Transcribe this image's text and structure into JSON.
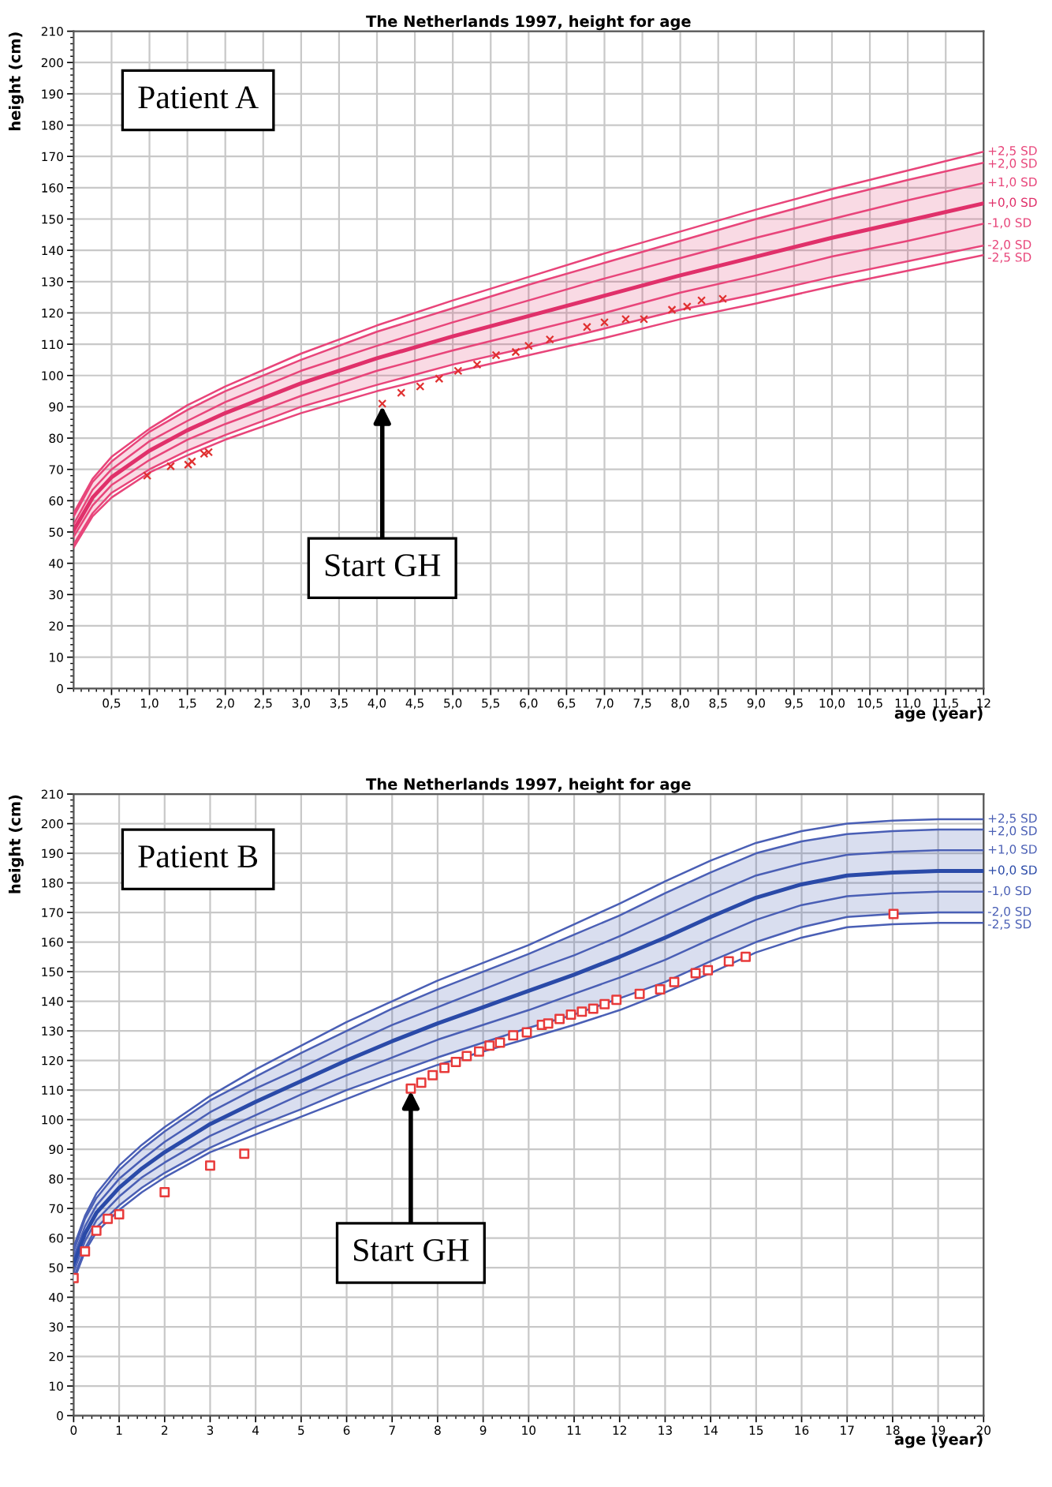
{
  "chart_data": [
    {
      "type": "line",
      "title": "The Netherlands 1997, height for age",
      "xlabel": "age (year)",
      "ylabel": "height (cm)",
      "xlim": [
        0,
        12
      ],
      "ylim": [
        0,
        210
      ],
      "xticks": [
        {
          "value": 0.5,
          "label": "0,5"
        },
        {
          "value": 1,
          "label": "1,0"
        },
        {
          "value": 1.5,
          "label": "1,5"
        },
        {
          "value": 2,
          "label": "2,0"
        },
        {
          "value": 2.5,
          "label": "2,5"
        },
        {
          "value": 3,
          "label": "3,0"
        },
        {
          "value": 3.5,
          "label": "3,5"
        },
        {
          "value": 4,
          "label": "4,0"
        },
        {
          "value": 4.5,
          "label": "4,5"
        },
        {
          "value": 5,
          "label": "5,0"
        },
        {
          "value": 5.5,
          "label": "5,5"
        },
        {
          "value": 6,
          "label": "6,0"
        },
        {
          "value": 6.5,
          "label": "6,5"
        },
        {
          "value": 7,
          "label": "7,0"
        },
        {
          "value": 7.5,
          "label": "7,5"
        },
        {
          "value": 8,
          "label": "8,0"
        },
        {
          "value": 8.5,
          "label": "8,5"
        },
        {
          "value": 9,
          "label": "9,0"
        },
        {
          "value": 9.5,
          "label": "9,5"
        },
        {
          "value": 10,
          "label": "10,0"
        },
        {
          "value": 10.5,
          "label": "10,5"
        },
        {
          "value": 11,
          "label": "11,0"
        },
        {
          "value": 11.5,
          "label": "11,5"
        },
        {
          "value": 12,
          "label": "12"
        }
      ],
      "yticks": [
        0,
        10,
        20,
        30,
        40,
        50,
        60,
        70,
        80,
        90,
        100,
        110,
        120,
        130,
        140,
        150,
        160,
        170,
        180,
        190,
        200,
        210
      ],
      "grid": true,
      "legend": false,
      "series": [
        {
          "name": "+2,5 SD",
          "color": "#e8457a",
          "marker": "none",
          "x": [
            0,
            0.25,
            0.5,
            1,
            1.5,
            2,
            3,
            4,
            5,
            6,
            7,
            8,
            9,
            10,
            11,
            12
          ],
          "values": [
            56,
            67,
            74,
            83,
            90.5,
            96.5,
            107,
            116,
            124,
            131.5,
            139,
            146,
            153,
            159.5,
            165.5,
            171.5
          ]
        },
        {
          "name": "+2,0 SD",
          "color": "#e8457a",
          "marker": "none",
          "x": [
            0,
            0.25,
            0.5,
            1,
            1.5,
            2,
            3,
            4,
            5,
            6,
            7,
            8,
            9,
            10,
            11,
            12
          ],
          "values": [
            55,
            66,
            72.5,
            82,
            89,
            95,
            105,
            114,
            121.5,
            129,
            136,
            143,
            150,
            156.5,
            162.5,
            168
          ]
        },
        {
          "name": "+1,0 SD",
          "color": "#e8457a",
          "marker": "none",
          "x": [
            0,
            0.25,
            0.5,
            1,
            1.5,
            2,
            3,
            4,
            5,
            6,
            7,
            8,
            9,
            10,
            11,
            12
          ],
          "values": [
            52.5,
            63.5,
            70,
            79,
            85.5,
            91.5,
            101.5,
            109.5,
            117,
            124,
            131,
            137.5,
            144,
            150,
            156,
            161.5
          ]
        },
        {
          "name": "+0,0 SD",
          "color": "#e0306a",
          "marker": "none",
          "x": [
            0,
            0.25,
            0.5,
            1,
            1.5,
            2,
            3,
            4,
            5,
            6,
            7,
            8,
            9,
            10,
            11,
            12
          ],
          "values": [
            50.5,
            61,
            67.5,
            76,
            82.5,
            88,
            97.5,
            105.5,
            112.5,
            119,
            125.5,
            132,
            138,
            144,
            149.5,
            155
          ],
          "lower": [
            46,
            56,
            62.5,
            70,
            76,
            81,
            90,
            97,
            103.5,
            109,
            115,
            121,
            126,
            131.5,
            136.5,
            141.5
          ],
          "upper": [
            55,
            66,
            72.5,
            82,
            89,
            95,
            105,
            114,
            121.5,
            129,
            136,
            143,
            150,
            156.5,
            162.5,
            168
          ]
        },
        {
          "name": "-1,0 SD",
          "color": "#e8457a",
          "marker": "none",
          "x": [
            0,
            0.25,
            0.5,
            1,
            1.5,
            2,
            3,
            4,
            5,
            6,
            7,
            8,
            9,
            10,
            11,
            12
          ],
          "values": [
            48.5,
            58.5,
            65,
            73,
            79.5,
            84.5,
            93.5,
            101.5,
            108,
            114,
            120,
            126.5,
            132,
            138,
            143,
            148.5
          ]
        },
        {
          "name": "-2,0 SD",
          "color": "#e8457a",
          "marker": "none",
          "x": [
            0,
            0.25,
            0.5,
            1,
            1.5,
            2,
            3,
            4,
            5,
            6,
            7,
            8,
            9,
            10,
            11,
            12
          ],
          "values": [
            46,
            56,
            62.5,
            70,
            76,
            81,
            90,
            97,
            103.5,
            109,
            115,
            121,
            126,
            131.5,
            136.5,
            141.5
          ]
        },
        {
          "name": "-2,5 SD",
          "color": "#e8457a",
          "marker": "none",
          "x": [
            0,
            0.25,
            0.5,
            1,
            1.5,
            2,
            3,
            4,
            5,
            6,
            7,
            8,
            9,
            10,
            11,
            12
          ],
          "values": [
            45,
            55,
            61,
            69,
            74.5,
            79.5,
            88,
            95,
            101,
            106.5,
            112,
            118,
            123,
            128.5,
            133.5,
            138.5
          ]
        },
        {
          "type": "scatter",
          "color": "#e03030",
          "marker": "cross",
          "x": [
            0.97,
            1.28,
            1.51,
            1.56,
            1.72,
            1.78,
            4.07,
            4.32,
            4.57,
            4.82,
            5.07,
            5.32,
            5.57,
            5.83,
            6.0,
            6.28,
            6.77,
            7.0,
            7.28,
            7.52,
            7.89,
            8.09,
            8.28,
            8.56
          ],
          "values": [
            68,
            71,
            71.5,
            72.5,
            75,
            75.5,
            91,
            94.5,
            96.5,
            99,
            101.5,
            103.5,
            106.5,
            107.5,
            109.5,
            111.5,
            115.5,
            117,
            118,
            118,
            121,
            122,
            124,
            124.5
          ]
        }
      ],
      "annotations": [
        "Patient A",
        {
          "text": "Start GH",
          "x": 4.07,
          "y": 91
        }
      ]
    },
    {
      "type": "line",
      "title": "The Netherlands 1997, height for age",
      "xlabel": "age (year)",
      "ylabel": "height (cm)",
      "xlim": [
        0,
        20
      ],
      "ylim": [
        0,
        210
      ],
      "xticks": [
        0,
        1,
        2,
        3,
        4,
        5,
        6,
        7,
        8,
        9,
        10,
        11,
        12,
        13,
        14,
        15,
        16,
        17,
        18,
        19,
        20
      ],
      "yticks": [
        0,
        10,
        20,
        30,
        40,
        50,
        60,
        70,
        80,
        90,
        100,
        110,
        120,
        130,
        140,
        150,
        160,
        170,
        180,
        190,
        200,
        210
      ],
      "grid": true,
      "legend": false,
      "series": [
        {
          "name": "+2,5 SD",
          "color": "#4a5fb5",
          "marker": "none",
          "x": [
            0,
            0.25,
            0.5,
            1,
            1.5,
            2,
            3,
            4,
            5,
            6,
            7,
            8,
            9,
            10,
            11,
            12,
            13,
            14,
            15,
            16,
            17,
            18,
            19,
            20
          ],
          "values": [
            57,
            67.5,
            75,
            84.5,
            91.5,
            97.5,
            108,
            117,
            125,
            133,
            140,
            147,
            153,
            159,
            166,
            173,
            180.5,
            187.5,
            193.5,
            197.5,
            200,
            201,
            201.5,
            201.5
          ]
        },
        {
          "name": "+2,0 SD",
          "color": "#4a5fb5",
          "marker": "none",
          "x": [
            0,
            0.25,
            0.5,
            1,
            1.5,
            2,
            3,
            4,
            5,
            6,
            7,
            8,
            9,
            10,
            11,
            12,
            13,
            14,
            15,
            16,
            17,
            18,
            19,
            20
          ],
          "values": [
            55.5,
            66.5,
            73.5,
            83,
            90,
            96,
            106.5,
            114.5,
            122.5,
            130,
            137.5,
            144,
            150,
            156,
            162.5,
            169,
            176.5,
            183.5,
            190,
            194,
            196.5,
            197.5,
            198,
            198
          ]
        },
        {
          "name": "+1,0 SD",
          "color": "#4a5fb5",
          "marker": "none",
          "x": [
            0,
            0.25,
            0.5,
            1,
            1.5,
            2,
            3,
            4,
            5,
            6,
            7,
            8,
            9,
            10,
            11,
            12,
            13,
            14,
            15,
            16,
            17,
            18,
            19,
            20
          ],
          "values": [
            53.5,
            64,
            71,
            80,
            86.5,
            92.5,
            102.5,
            110.5,
            117.5,
            125,
            132,
            138,
            144,
            150,
            155.5,
            162,
            169,
            176,
            182.5,
            186.5,
            189.5,
            190.5,
            191,
            191
          ]
        },
        {
          "name": "+0,0 SD",
          "color": "#2a4aa8",
          "marker": "none",
          "x": [
            0,
            0.25,
            0.5,
            1,
            1.5,
            2,
            3,
            4,
            5,
            6,
            7,
            8,
            9,
            10,
            11,
            12,
            13,
            14,
            15,
            16,
            17,
            18,
            19,
            20
          ],
          "values": [
            51,
            61.5,
            68.5,
            77,
            83.5,
            89,
            98.5,
            106,
            113,
            120,
            126.5,
            132.5,
            138,
            143.5,
            149,
            155,
            161.5,
            168.5,
            175,
            179.5,
            182.5,
            183.5,
            184,
            184
          ],
          "lower": [
            46.5,
            56.5,
            63.5,
            71,
            77,
            82,
            90.5,
            97.5,
            103.5,
            110,
            115.5,
            121,
            126,
            131,
            135.5,
            141,
            146.5,
            153.5,
            160,
            165,
            168.5,
            169.5,
            170,
            170
          ],
          "upper": [
            55.5,
            66.5,
            73.5,
            83,
            90,
            96,
            106.5,
            114.5,
            122.5,
            130,
            137.5,
            144,
            150,
            156,
            162.5,
            169,
            176.5,
            183.5,
            190,
            194,
            196.5,
            197.5,
            198,
            198
          ]
        },
        {
          "name": "-1,0 SD",
          "color": "#4a5fb5",
          "marker": "none",
          "x": [
            0,
            0.25,
            0.5,
            1,
            1.5,
            2,
            3,
            4,
            5,
            6,
            7,
            8,
            9,
            10,
            11,
            12,
            13,
            14,
            15,
            16,
            17,
            18,
            19,
            20
          ],
          "values": [
            48.5,
            59,
            66,
            74,
            80.5,
            85.5,
            94.5,
            101.5,
            108.5,
            115,
            121,
            127,
            132,
            137,
            142.5,
            148,
            154,
            161,
            167.5,
            172.5,
            175.5,
            176.5,
            177,
            177
          ]
        },
        {
          "name": "-2,0 SD",
          "color": "#4a5fb5",
          "marker": "none",
          "x": [
            0,
            0.25,
            0.5,
            1,
            1.5,
            2,
            3,
            4,
            5,
            6,
            7,
            8,
            9,
            10,
            11,
            12,
            13,
            14,
            15,
            16,
            17,
            18,
            19,
            20
          ],
          "values": [
            46.5,
            56.5,
            63.5,
            71,
            77,
            82,
            90.5,
            97.5,
            103.5,
            110,
            115.5,
            121,
            126,
            131,
            135.5,
            141,
            146.5,
            153.5,
            160,
            165,
            168.5,
            169.5,
            170,
            170
          ]
        },
        {
          "name": "-2,5 SD",
          "color": "#4a5fb5",
          "marker": "none",
          "x": [
            0,
            0.25,
            0.5,
            1,
            1.5,
            2,
            3,
            4,
            5,
            6,
            7,
            8,
            9,
            10,
            11,
            12,
            13,
            14,
            15,
            16,
            17,
            18,
            19,
            20
          ],
          "values": [
            45.5,
            55.5,
            62,
            69.5,
            75.5,
            80.5,
            89,
            95,
            101,
            107,
            113,
            118.5,
            123,
            127.5,
            132,
            137,
            143,
            149.5,
            156.5,
            161.5,
            165,
            166,
            166.5,
            166.5
          ]
        },
        {
          "type": "scatter",
          "color": "#e83a3a",
          "marker": "square",
          "x": [
            0,
            0.25,
            0.5,
            0.75,
            1.0,
            2.0,
            3.0,
            3.75,
            7.41,
            7.64,
            7.89,
            8.15,
            8.4,
            8.64,
            8.91,
            9.14,
            9.37,
            9.66,
            9.96,
            10.29,
            10.43,
            10.68,
            10.93,
            11.17,
            11.42,
            11.67,
            11.93,
            12.44,
            12.89,
            13.2,
            13.67,
            13.94,
            14.4,
            14.77,
            18.02
          ],
          "values": [
            46.5,
            55.5,
            62.5,
            66.5,
            68,
            75.5,
            84.5,
            88.5,
            110.5,
            112.5,
            115,
            117.5,
            119.5,
            121.5,
            123,
            125,
            126,
            128.5,
            129.5,
            132,
            132.5,
            134,
            135.5,
            136.5,
            137.5,
            139,
            140.5,
            142.5,
            144,
            146.5,
            149.5,
            150.5,
            153.5,
            155,
            169.5
          ]
        }
      ],
      "annotations": [
        "Patient B",
        {
          "text": "Start GH",
          "x": 7.41,
          "y": 110.5
        }
      ]
    }
  ]
}
